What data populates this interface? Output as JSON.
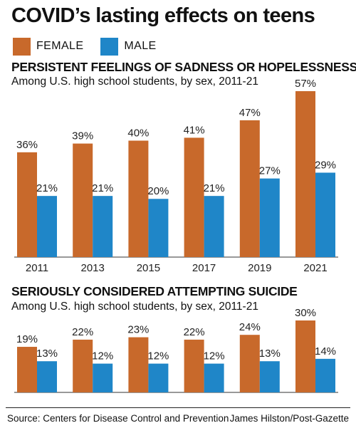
{
  "title": "COVID’s lasting effects on teens",
  "legend": [
    {
      "label": "FEMALE",
      "color": "#C8692B"
    },
    {
      "label": "MALE",
      "color": "#1F86C8"
    }
  ],
  "colors": {
    "female": "#C8692B",
    "male": "#1F86C8",
    "axis": "#333333"
  },
  "chart_data": [
    {
      "type": "bar",
      "title": "PERSISTENT FEELINGS OF SADNESS OR HOPELESSNESS",
      "subtitle": "Among U.S. high school students, by sex, 2011-21",
      "categories": [
        "2011",
        "2013",
        "2015",
        "2017",
        "2019",
        "2021"
      ],
      "series": [
        {
          "name": "FEMALE",
          "values": [
            36,
            39,
            40,
            41,
            47,
            57
          ],
          "labels": [
            "36%",
            "39%",
            "40%",
            "41%",
            "47%",
            "57%"
          ]
        },
        {
          "name": "MALE",
          "values": [
            21,
            21,
            20,
            21,
            27,
            29
          ],
          "labels": [
            "21%",
            "21%",
            "20%",
            "21%",
            "27%",
            "29%"
          ]
        }
      ],
      "ylim": [
        0,
        57
      ],
      "grid": false,
      "legend_position": "top-left"
    },
    {
      "type": "bar",
      "title": "SERIOUSLY CONSIDERED ATTEMPTING SUICIDE",
      "subtitle": "Among U.S. high school students, by sex, 2011-21",
      "categories": [
        "2011",
        "2013",
        "2015",
        "2017",
        "2019",
        "2021"
      ],
      "series": [
        {
          "name": "FEMALE",
          "values": [
            19,
            22,
            23,
            22,
            24,
            30
          ],
          "labels": [
            "19%",
            "22%",
            "23%",
            "22%",
            "24%",
            "30%"
          ]
        },
        {
          "name": "MALE",
          "values": [
            13,
            12,
            12,
            12,
            13,
            14
          ],
          "labels": [
            "13%",
            "12%",
            "12%",
            "12%",
            "13%",
            "14%"
          ]
        }
      ],
      "ylim": [
        0,
        30
      ],
      "grid": false,
      "legend_position": "top-left"
    }
  ],
  "footer": {
    "source": "Source: Centers for Disease Control and Prevention",
    "credit": "James Hilston/Post-Gazette"
  }
}
